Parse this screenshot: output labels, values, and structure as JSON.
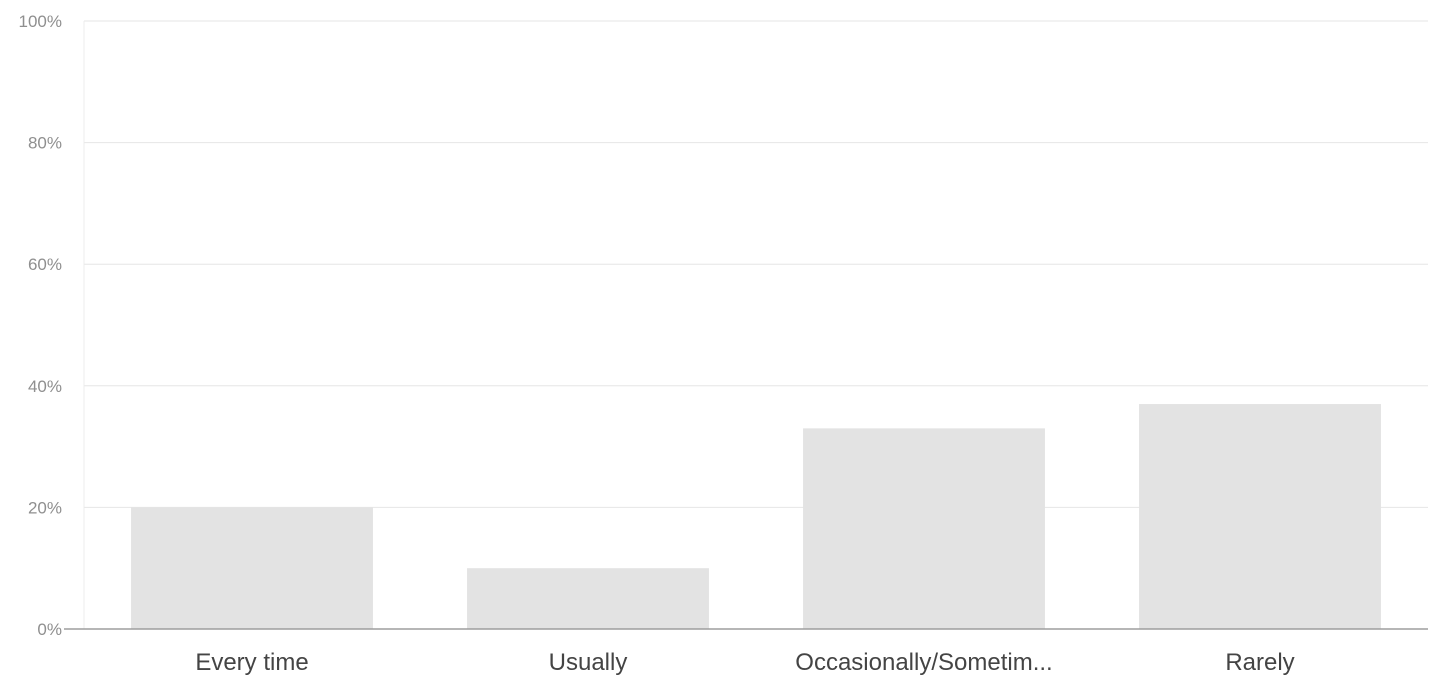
{
  "chart_data": {
    "type": "bar",
    "categories": [
      "Every time",
      "Usually",
      "Occasionally/Sometim...",
      "Rarely"
    ],
    "values": [
      20,
      10,
      33,
      37
    ],
    "y_ticks": [
      "0%",
      "20%",
      "40%",
      "60%",
      "80%",
      "100%"
    ],
    "ylim": [
      0,
      100
    ],
    "grid": true,
    "legend": "none",
    "bar_color": "#e3e3e3",
    "grid_color": "#e6e6e6",
    "axis_color": "#9e9e9e"
  }
}
